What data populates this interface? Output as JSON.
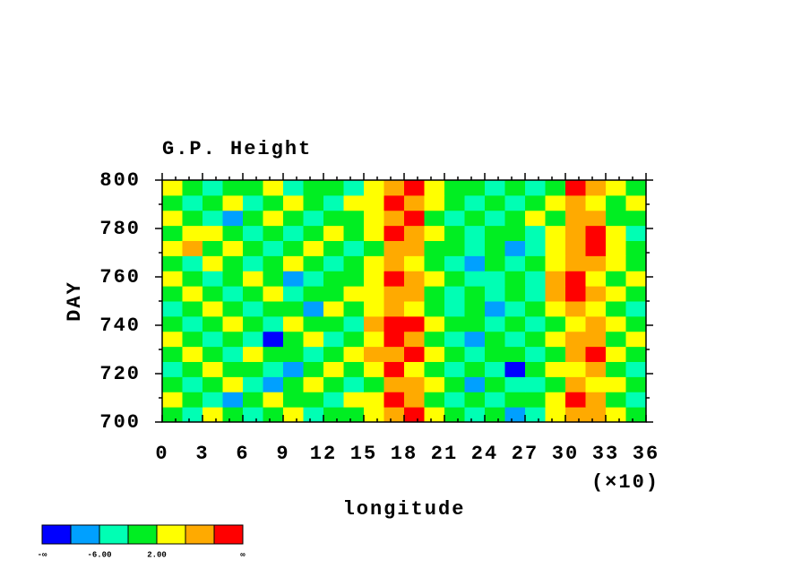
{
  "chart_data": {
    "type": "hovmoller",
    "title": "G.P. Height",
    "xlabel": "longitude",
    "ylabel": "DAY",
    "x_multiplier": "(×10)",
    "xlim": [
      0,
      360
    ],
    "ylim": [
      700,
      800
    ],
    "xticks": [
      0,
      {
        "value": 30,
        "label": "3"
      },
      {
        "value": 60,
        "label": "6"
      },
      {
        "value": 90,
        "label": "9"
      },
      {
        "value": 120,
        "label": "12"
      },
      {
        "value": 150,
        "label": "15"
      },
      {
        "value": 180,
        "label": "18"
      },
      {
        "value": 210,
        "label": "21"
      },
      {
        "value": 240,
        "label": "24"
      },
      {
        "value": 270,
        "label": "27"
      },
      {
        "value": 300,
        "label": "30"
      },
      {
        "value": 330,
        "label": "33"
      },
      {
        "value": 360,
        "label": "36"
      }
    ],
    "yticks": [
      700,
      720,
      740,
      760,
      780,
      800
    ],
    "colorbar": {
      "colors": [
        "#0000ff",
        "#00a0ff",
        "#00ffb4",
        "#00ee22",
        "#ffff00",
        "#ffaa00",
        "#ff0000"
      ],
      "levels": [
        -10,
        -6,
        -2,
        2,
        6,
        10
      ],
      "labels": [
        {
          "value": -6,
          "label": "-6.00"
        },
        {
          "value": 2,
          "label": "2.00"
        }
      ],
      "low_label": "-∞",
      "high_label": "∞"
    },
    "values": [
      [
        0,
        -4,
        4,
        0,
        -4,
        0,
        4,
        -4,
        0,
        0,
        4,
        8,
        12,
        4,
        0,
        -4,
        0,
        -8,
        -4,
        4,
        8,
        8,
        4,
        0
      ],
      [
        4,
        0,
        -4,
        -8,
        0,
        4,
        0,
        0,
        -4,
        4,
        4,
        12,
        8,
        0,
        -4,
        0,
        -4,
        0,
        0,
        4,
        12,
        8,
        0,
        -4
      ],
      [
        0,
        -4,
        0,
        4,
        -4,
        -8,
        0,
        4,
        0,
        -4,
        0,
        8,
        8,
        4,
        0,
        -8,
        0,
        -4,
        -4,
        0,
        8,
        4,
        4,
        0
      ],
      [
        -4,
        0,
        4,
        0,
        0,
        -4,
        -8,
        0,
        4,
        0,
        4,
        12,
        4,
        0,
        -4,
        0,
        -4,
        -12,
        0,
        4,
        4,
        8,
        0,
        -4
      ],
      [
        0,
        4,
        0,
        -4,
        4,
        0,
        0,
        -4,
        0,
        4,
        8,
        8,
        12,
        4,
        0,
        -4,
        0,
        0,
        -4,
        0,
        8,
        12,
        4,
        0
      ],
      [
        4,
        0,
        -4,
        0,
        -4,
        -12,
        0,
        4,
        -4,
        0,
        4,
        12,
        8,
        0,
        -4,
        -8,
        0,
        -4,
        0,
        4,
        8,
        8,
        0,
        4
      ],
      [
        0,
        -4,
        0,
        4,
        0,
        -4,
        4,
        0,
        0,
        -4,
        8,
        12,
        12,
        4,
        0,
        0,
        -4,
        0,
        -4,
        0,
        4,
        8,
        4,
        0
      ],
      [
        -4,
        0,
        4,
        0,
        -4,
        0,
        0,
        -8,
        4,
        0,
        4,
        8,
        4,
        0,
        -4,
        0,
        -8,
        -4,
        0,
        4,
        8,
        4,
        0,
        -4
      ],
      [
        0,
        4,
        0,
        -4,
        0,
        4,
        -4,
        0,
        0,
        4,
        4,
        8,
        8,
        0,
        -4,
        0,
        -4,
        0,
        -4,
        8,
        12,
        8,
        4,
        0
      ],
      [
        4,
        0,
        -4,
        0,
        4,
        0,
        -8,
        -4,
        0,
        0,
        4,
        12,
        8,
        4,
        0,
        -4,
        -4,
        0,
        -4,
        8,
        12,
        4,
        0,
        4
      ],
      [
        0,
        -4,
        4,
        0,
        -4,
        0,
        4,
        0,
        -4,
        0,
        4,
        8,
        4,
        0,
        -4,
        -8,
        0,
        -4,
        0,
        4,
        8,
        8,
        4,
        0
      ],
      [
        4,
        8,
        0,
        4,
        0,
        -4,
        0,
        4,
        0,
        -4,
        0,
        8,
        8,
        0,
        0,
        -4,
        0,
        -8,
        -4,
        4,
        8,
        12,
        4,
        0
      ],
      [
        0,
        4,
        4,
        0,
        -4,
        0,
        -4,
        0,
        4,
        0,
        4,
        12,
        8,
        4,
        0,
        -4,
        0,
        0,
        -4,
        4,
        8,
        12,
        4,
        -4
      ],
      [
        4,
        0,
        -4,
        -8,
        0,
        4,
        0,
        -4,
        0,
        0,
        4,
        8,
        12,
        0,
        -4,
        0,
        -4,
        0,
        4,
        0,
        8,
        8,
        0,
        0
      ],
      [
        0,
        -4,
        0,
        4,
        -4,
        0,
        4,
        0,
        -4,
        4,
        4,
        12,
        8,
        4,
        0,
        -4,
        0,
        -4,
        0,
        4,
        8,
        4,
        0,
        4
      ],
      [
        4,
        0,
        -4,
        0,
        0,
        4,
        -4,
        0,
        0,
        -4,
        4,
        8,
        12,
        4,
        0,
        0,
        -4,
        0,
        -4,
        0,
        12,
        8,
        4,
        0
      ]
    ]
  }
}
